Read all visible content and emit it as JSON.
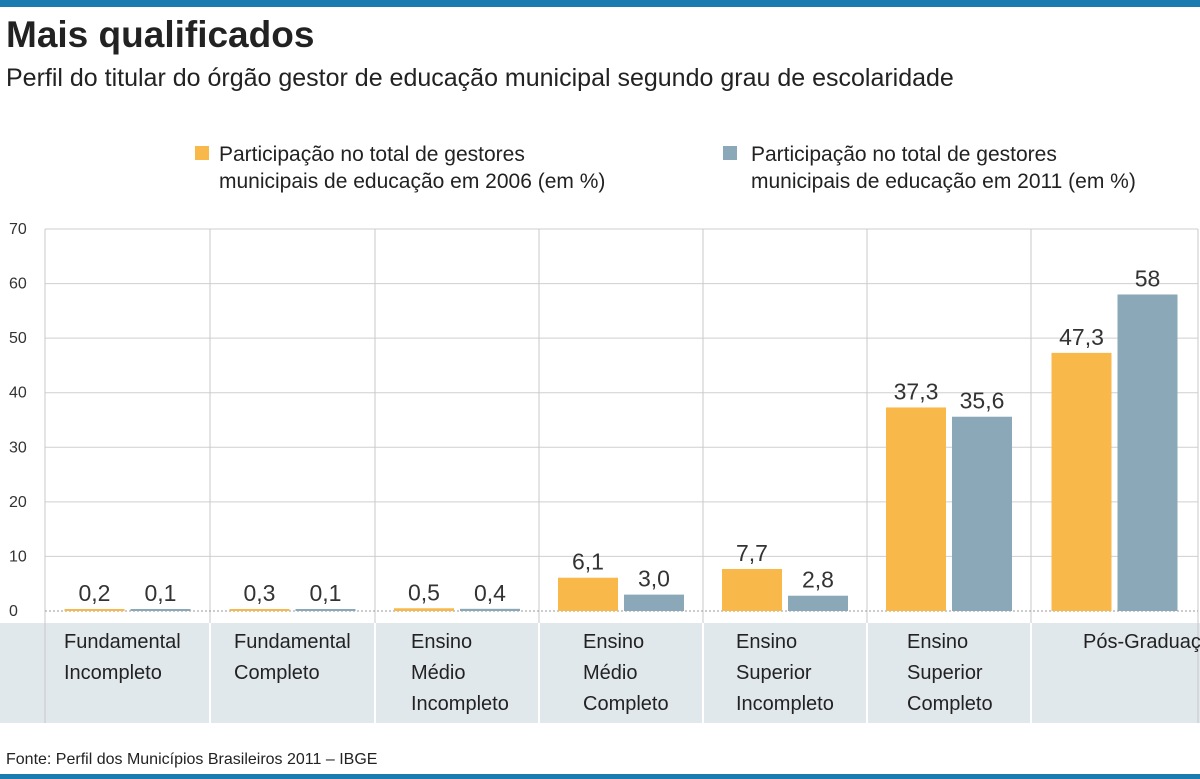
{
  "header": {
    "title": "Mais qualificados",
    "subtitle": "Perfil do titular do órgão gestor de educação municipal segundo grau de escolaridade"
  },
  "legend": [
    {
      "line1": "Participação no total de gestores",
      "line2": "municipais de educação em 2006 (em %)",
      "color": "#f8b84a"
    },
    {
      "line1": "Participação no total de gestores",
      "line2": "municipais de educação em 2011 (em %)",
      "color": "#8aa8b8"
    }
  ],
  "footer": "Fonte: Perfil dos Municípios Brasileiros 2011 – IBGE",
  "chart_data": {
    "type": "bar",
    "title": "Mais qualificados",
    "categories": [
      [
        "Fundamental",
        "Incompleto"
      ],
      [
        "Fundamental",
        "Completo"
      ],
      [
        "Ensino",
        "Médio",
        "Incompleto"
      ],
      [
        "Ensino",
        "Médio",
        "Completo"
      ],
      [
        "Ensino",
        "Superior",
        "Incompleto"
      ],
      [
        "Ensino",
        "Superior",
        "Completo"
      ],
      [
        "Pós-Graduação"
      ]
    ],
    "series": [
      {
        "name": "2006",
        "color": "#f8b84a",
        "values": [
          0.2,
          0.3,
          0.5,
          6.1,
          7.7,
          37.3,
          47.3
        ],
        "labels": [
          "0,2",
          "0,3",
          "0,5",
          "6,1",
          "7,7",
          "37,3",
          "47,3"
        ]
      },
      {
        "name": "2011",
        "color": "#8aa8b8",
        "values": [
          0.1,
          0.1,
          0.4,
          3.0,
          2.8,
          35.6,
          58
        ],
        "labels": [
          "0,1",
          "0,1",
          "0,4",
          "3,0",
          "2,8",
          "35,6",
          "58"
        ]
      }
    ],
    "ylim": [
      0,
      70
    ],
    "yticks": [
      0,
      10,
      20,
      30,
      40,
      50,
      60,
      70
    ],
    "grid": true,
    "xlabel": "",
    "ylabel": ""
  }
}
